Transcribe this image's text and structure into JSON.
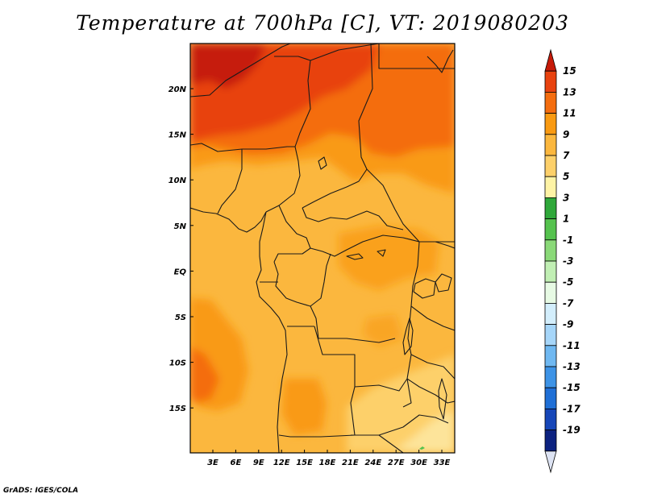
{
  "title": "Temperature at 700hPa [C], VT: 2019080203",
  "credit": "GrADS: IGES/COLA",
  "map": {
    "lon_labels": [
      "3E",
      "6E",
      "9E",
      "12E",
      "15E",
      "18E",
      "21E",
      "24E",
      "27E",
      "30E",
      "33E"
    ],
    "lat_labels": [
      "20N",
      "15N",
      "10N",
      "5N",
      "EQ",
      "5S",
      "10S",
      "15S"
    ]
  },
  "colorbar": {
    "labels": [
      "15",
      "13",
      "11",
      "9",
      "7",
      "5",
      "3",
      "1",
      "-1",
      "-3",
      "-5",
      "-7",
      "-9",
      "-11",
      "-13",
      "-15",
      "-17",
      "-19"
    ],
    "colors": [
      "#c61a09",
      "#e8420f",
      "#f46d0f",
      "#f99a12",
      "#fbb73e",
      "#fdd06a",
      "#fef3a5",
      "#2fa83a",
      "#55c24e",
      "#8ad978",
      "#c1efb4",
      "#e7fae4",
      "#d3eefc",
      "#a6d6f9",
      "#6fb8f1",
      "#3d93e6",
      "#1f6fd6",
      "#1646b8",
      "#0c2280",
      "#dde3f3"
    ]
  }
}
